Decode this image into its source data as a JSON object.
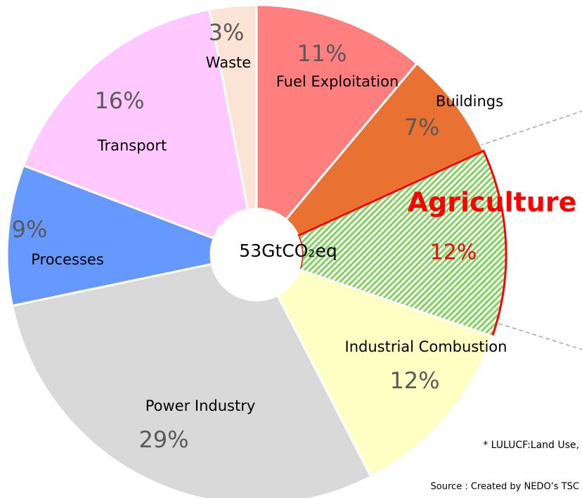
{
  "chart_data": {
    "type": "donut",
    "center_label": "53GtCO₂eq",
    "categories": [
      "Fuel Exploitation",
      "Buildings",
      "Agriculture",
      "Industrial Combustion",
      "Power Industry",
      "Processes",
      "Transport",
      "Waste"
    ],
    "values": [
      11,
      7,
      12,
      12,
      29,
      9,
      16,
      3
    ],
    "value_labels": [
      "11%",
      "7%",
      "12%",
      "12%",
      "29%",
      "9%",
      "16%",
      "3%"
    ],
    "colors": [
      "#ff7f7f",
      "#e97132",
      "#a9e38f",
      "#ffffc4",
      "#d9d9d9",
      "#6699ff",
      "#ffc8ff",
      "#fbe3d6"
    ],
    "highlight": "Agriculture",
    "footnote": "* LULUCF:Land Use,",
    "source": "Source : Created by NEDO’s TSC"
  }
}
